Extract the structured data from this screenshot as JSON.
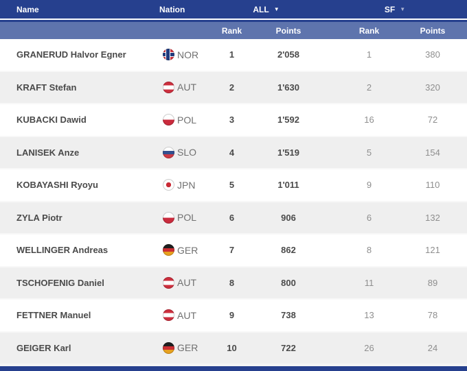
{
  "colors": {
    "navy": "#26408e",
    "header-blue": "#5e74ad",
    "row-alt": "#efefef",
    "text-dark": "#4a4a4a",
    "text-muted": "#8e8e8e",
    "nation-text": "#707070",
    "sf-arrow": "#a9b2d1"
  },
  "table": {
    "header": {
      "name_label": "Name",
      "nation_label": "Nation",
      "all_label": "ALL",
      "sf_label": "SF",
      "dropdown_glyph": "▼",
      "rank_label": "Rank",
      "points_label": "Points"
    },
    "rows": [
      {
        "name": "GRANERUD Halvor Egner",
        "nation": "NOR",
        "all_rank": "1",
        "all_points": "2'058",
        "sf_rank": "1",
        "sf_points": "380"
      },
      {
        "name": "KRAFT Stefan",
        "nation": "AUT",
        "all_rank": "2",
        "all_points": "1'630",
        "sf_rank": "2",
        "sf_points": "320"
      },
      {
        "name": "KUBACKI Dawid",
        "nation": "POL",
        "all_rank": "3",
        "all_points": "1'592",
        "sf_rank": "16",
        "sf_points": "72"
      },
      {
        "name": "LANISEK Anze",
        "nation": "SLO",
        "all_rank": "4",
        "all_points": "1'519",
        "sf_rank": "5",
        "sf_points": "154"
      },
      {
        "name": "KOBAYASHI Ryoyu",
        "nation": "JPN",
        "all_rank": "5",
        "all_points": "1'011",
        "sf_rank": "9",
        "sf_points": "110"
      },
      {
        "name": "ZYLA Piotr",
        "nation": "POL",
        "all_rank": "6",
        "all_points": "906",
        "sf_rank": "6",
        "sf_points": "132"
      },
      {
        "name": "WELLINGER Andreas",
        "nation": "GER",
        "all_rank": "7",
        "all_points": "862",
        "sf_rank": "8",
        "sf_points": "121"
      },
      {
        "name": "TSCHOFENIG Daniel",
        "nation": "AUT",
        "all_rank": "8",
        "all_points": "800",
        "sf_rank": "11",
        "sf_points": "89"
      },
      {
        "name": "FETTNER Manuel",
        "nation": "AUT",
        "all_rank": "9",
        "all_points": "738",
        "sf_rank": "13",
        "sf_points": "78"
      },
      {
        "name": "GEIGER Karl",
        "nation": "GER",
        "all_rank": "10",
        "all_points": "722",
        "sf_rank": "26",
        "sf_points": "24"
      }
    ]
  }
}
